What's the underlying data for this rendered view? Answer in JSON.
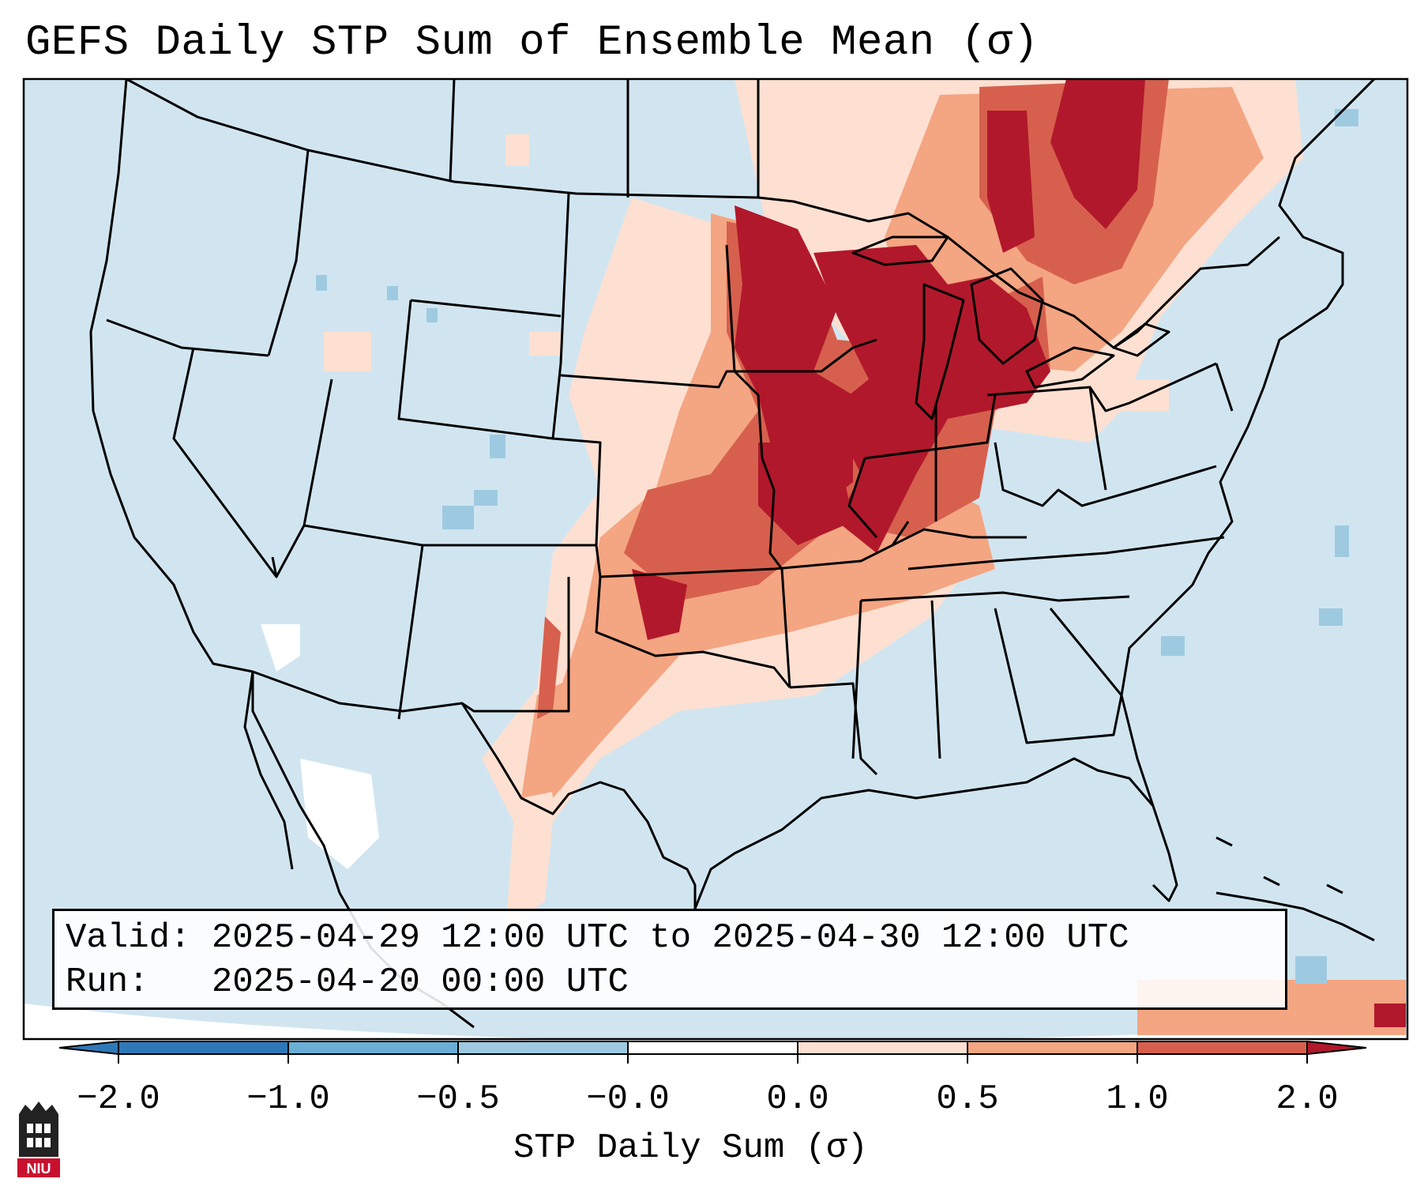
{
  "title": "GEFS Daily STP Sum of Ensemble Mean (σ)",
  "info_box": {
    "valid_label": "Valid:",
    "valid_value": "2025-04-29 12:00 UTC to 2025-04-30 12:00 UTC",
    "run_label": "Run:",
    "run_value": "2025-04-20 00:00 UTC"
  },
  "colorbar": {
    "label": "STP Daily Sum (σ)",
    "ticks": [
      "−2.0",
      "−1.0",
      "−0.5",
      "−0.0",
      "0.0",
      "0.5",
      "1.0",
      "2.0"
    ],
    "colors": [
      "#2f78b8",
      "#6baed6",
      "#9ecae1",
      "#d1e5f0",
      "#fde0d2",
      "#f4a582",
      "#d6604d",
      "#b2182b"
    ],
    "extend": "both"
  },
  "map": {
    "background_color": "#d1e5f0",
    "region": "Continental United States",
    "max_anomaly_area": "Upper Midwest / Great Lakes / Ohio Valley",
    "secondary_area": "Southern Plains (Oklahoma / West Texas)"
  },
  "logo": {
    "text": "NIU"
  }
}
